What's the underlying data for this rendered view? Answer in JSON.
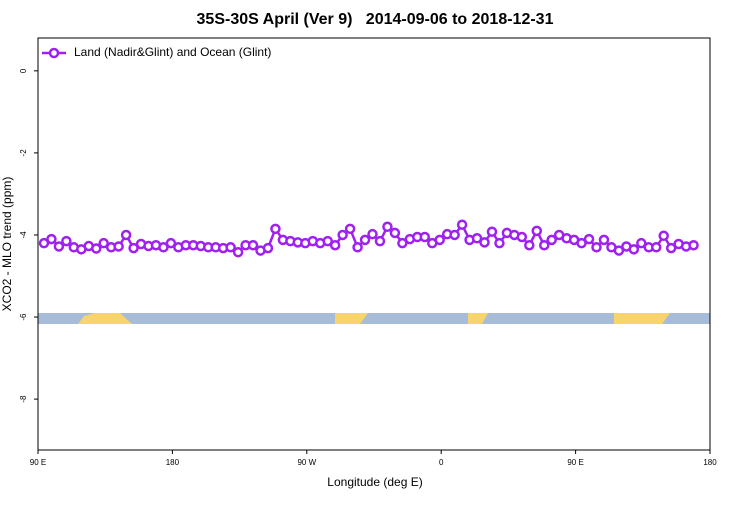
{
  "chart_data": {
    "type": "line",
    "title": "35S-30S April (Ver 9)   2014-09-06 to 2018-12-31",
    "xlabel": "Longitude (deg E)",
    "ylabel": "XCO2 - MLO trend (ppm)",
    "xlim": [
      90,
      540
    ],
    "xticks": [
      {
        "value": 90,
        "label": "90 E"
      },
      180,
      {
        "value": 270,
        "label": "90 W"
      },
      {
        "value": 360,
        "label": "0"
      },
      {
        "value": 450,
        "label": "90 E"
      },
      {
        "value": 540,
        "label": "180"
      }
    ],
    "ylim": [
      -9.24,
      0.8
    ],
    "yticks": [
      0,
      -2,
      -4,
      -6,
      -8
    ],
    "legend": "top-left",
    "x": [
      94,
      99,
      104,
      109,
      114,
      119,
      124,
      129,
      134,
      139,
      144,
      149,
      154,
      159,
      164,
      169,
      174,
      179,
      184,
      189,
      194,
      199,
      204,
      209,
      214,
      219,
      224,
      229,
      234,
      239,
      244,
      249,
      254,
      259,
      264,
      269,
      274,
      279,
      284,
      289,
      294,
      299,
      304,
      309,
      314,
      319,
      324,
      329,
      334,
      339,
      344,
      349,
      354,
      359,
      364,
      369,
      374,
      379,
      384,
      389,
      394,
      399,
      404,
      409,
      414,
      419,
      424,
      429,
      434,
      439,
      444,
      449,
      454,
      459,
      464,
      469,
      474,
      479,
      484,
      489,
      494,
      499,
      504,
      509,
      514,
      519,
      524,
      529
    ],
    "series": [
      {
        "name": "Land (Nadir&Glint) and Ocean (Glint)",
        "color": "#a020f0",
        "values": [
          -4.2,
          -4.1,
          -4.28,
          -4.15,
          -4.3,
          -4.35,
          -4.27,
          -4.33,
          -4.2,
          -4.3,
          -4.28,
          -4.0,
          -4.32,
          -4.22,
          -4.27,
          -4.25,
          -4.3,
          -4.2,
          -4.3,
          -4.25,
          -4.25,
          -4.27,
          -4.3,
          -4.3,
          -4.32,
          -4.3,
          -4.42,
          -4.25,
          -4.25,
          -4.38,
          -4.32,
          -3.85,
          -4.12,
          -4.15,
          -4.18,
          -4.2,
          -4.15,
          -4.2,
          -4.15,
          -4.25,
          -4.0,
          -3.85,
          -4.3,
          -4.12,
          -3.98,
          -4.15,
          -3.8,
          -3.95,
          -4.2,
          -4.1,
          -4.05,
          -4.05,
          -4.2,
          -4.12,
          -3.98,
          -4.0,
          -3.75,
          -4.12,
          -4.08,
          -4.18,
          -3.92,
          -4.2,
          -3.95,
          -4.0,
          -4.05,
          -4.25,
          -3.9,
          -4.25,
          -4.12,
          -4.0,
          -4.08,
          -4.12,
          -4.2,
          -4.1,
          -4.3,
          -4.12,
          -4.3,
          -4.38,
          -4.28,
          -4.35,
          -4.2,
          -4.3,
          -4.3,
          -4.02,
          -4.32,
          -4.22,
          -4.28,
          -4.25
        ]
      }
    ]
  }
}
